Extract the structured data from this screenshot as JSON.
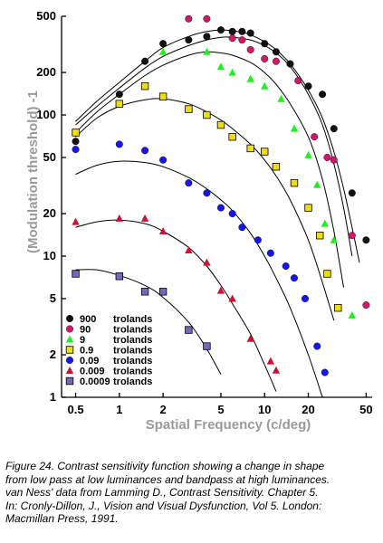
{
  "chart_data": {
    "type": "scatter",
    "xlabel": "Spatial Frequency (c/deg)",
    "ylabel": "(Modulation threshold) -1",
    "xscale": "log",
    "yscale": "log",
    "xlim": [
      0.4,
      55
    ],
    "ylim": [
      1,
      500
    ],
    "x_ticks": [
      0.5,
      1,
      2,
      5,
      10,
      20,
      50
    ],
    "y_ticks": [
      1,
      2,
      5,
      10,
      20,
      50,
      100,
      200,
      500
    ],
    "legend_position": "bottom-left",
    "series": [
      {
        "name": "900",
        "unit": "trolands",
        "marker": "circle",
        "color": "#111111",
        "x": [
          0.5,
          1.0,
          1.5,
          2.0,
          3.0,
          4.0,
          5.0,
          6.0,
          7.0,
          8.0,
          10.0,
          12.0,
          15.0,
          20.0,
          25.0,
          30.0,
          40.0,
          50.0
        ],
        "y": [
          65,
          140,
          240,
          320,
          340,
          360,
          400,
          390,
          390,
          380,
          320,
          280,
          230,
          160,
          140,
          80,
          28,
          13
        ]
      },
      {
        "name": "90",
        "unit": "trolands",
        "marker": "circle",
        "color": "#cc1a66",
        "x": [
          3.0,
          4.0,
          6.0,
          7.0,
          8.0,
          10.0,
          12.0,
          17.0,
          22.0,
          27.0,
          30.0,
          40.0,
          50.0
        ],
        "y": [
          480,
          480,
          350,
          340,
          290,
          250,
          240,
          175,
          70,
          50,
          48,
          14,
          4.5
        ]
      },
      {
        "name": "9",
        "unit": "trolands",
        "marker": "triangle",
        "color": "#22ee22",
        "x": [
          2.0,
          4.0,
          5.0,
          6.0,
          8.0,
          10.0,
          13.0,
          16.0,
          20.0,
          23.0,
          26.0,
          30.0,
          40.0
        ],
        "y": [
          280,
          280,
          220,
          200,
          180,
          160,
          130,
          80,
          52,
          32,
          17,
          13,
          3.8
        ]
      },
      {
        "name": "0.9",
        "unit": "trolands",
        "marker": "square",
        "color": "#eedd11",
        "x": [
          0.5,
          1.0,
          1.5,
          2.0,
          3.0,
          4.0,
          5.0,
          6.0,
          8.0,
          10.0,
          12.0,
          16.0,
          20.0,
          24.0,
          27.0,
          32.0
        ],
        "y": [
          75,
          120,
          160,
          135,
          110,
          100,
          85,
          70,
          58,
          55,
          43,
          33,
          22,
          14,
          7.5,
          4.3
        ]
      },
      {
        "name": "0.09",
        "unit": "trolands",
        "marker": "circle",
        "color": "#1515ee",
        "x": [
          0.5,
          1.0,
          1.5,
          2.0,
          3.0,
          4.0,
          5.0,
          6.0,
          7.0,
          9.0,
          11.0,
          14.0,
          16.0,
          19.0,
          23.0,
          26.0
        ],
        "y": [
          57,
          62,
          56,
          48,
          33,
          28,
          22,
          20,
          16,
          13,
          10.5,
          8.5,
          7.0,
          5.0,
          2.3,
          1.5
        ]
      },
      {
        "name": "0.009",
        "unit": "trolands",
        "marker": "triangle",
        "color": "#cc1133",
        "x": [
          0.5,
          1.0,
          1.5,
          2.0,
          3.0,
          4.0,
          5.0,
          6.0,
          8.0,
          11.0,
          12.0
        ],
        "y": [
          17.5,
          18.5,
          18.5,
          15,
          11,
          9.0,
          5.7,
          5.0,
          2.6,
          1.8,
          1.55
        ]
      },
      {
        "name": "0.0009",
        "unit": "trolands",
        "marker": "square",
        "color": "#7766bb",
        "x": [
          0.5,
          1.0,
          1.5,
          2.0,
          3.0,
          4.0
        ],
        "y": [
          7.5,
          7.2,
          5.6,
          5.6,
          3.0,
          2.3
        ]
      }
    ],
    "curves": [
      {
        "x": [
          0.5,
          0.7,
          1.0,
          1.5,
          2.0,
          3.0,
          4.0,
          5.0,
          6.0,
          7.0,
          8.0,
          10.0,
          12.0,
          15.0,
          20.0,
          25.0,
          30.0,
          35.0,
          40.0,
          45.0
        ],
        "y": [
          90,
          125,
          170,
          240,
          300,
          360,
          390,
          400,
          395,
          385,
          370,
          330,
          290,
          230,
          150,
          95,
          55,
          30,
          16,
          9
        ]
      },
      {
        "x": [
          0.5,
          0.7,
          1.0,
          1.5,
          2.0,
          3.0,
          4.0,
          5.0,
          6.0,
          8.0,
          10.0,
          12.0,
          15.0,
          20.0,
          25.0,
          30.0,
          35.0,
          40.0
        ],
        "y": [
          85,
          115,
          155,
          215,
          260,
          310,
          340,
          355,
          355,
          340,
          310,
          275,
          220,
          140,
          85,
          45,
          22,
          10
        ]
      },
      {
        "x": [
          0.5,
          0.7,
          1.0,
          1.5,
          2.0,
          3.0,
          4.0,
          5.0,
          6.0,
          8.0,
          10.0,
          12.0,
          15.0,
          20.0,
          25.0,
          30.0,
          35.0
        ],
        "y": [
          75,
          105,
          140,
          190,
          225,
          265,
          280,
          275,
          265,
          235,
          200,
          165,
          120,
          70,
          35,
          15,
          6
        ]
      },
      {
        "x": [
          0.5,
          0.7,
          1.0,
          1.5,
          2.0,
          3.0,
          4.0,
          5.0,
          6.0,
          8.0,
          10.0,
          12.0,
          15.0,
          20.0,
          25.0,
          30.0
        ],
        "y": [
          70,
          95,
          115,
          128,
          130,
          120,
          105,
          92,
          80,
          62,
          48,
          37,
          25,
          13,
          6.5,
          3.5
        ]
      },
      {
        "x": [
          0.5,
          0.7,
          1.0,
          1.5,
          2.0,
          3.0,
          4.0,
          5.0,
          6.0,
          8.0,
          10.0,
          12.0,
          15.0,
          20.0,
          25.0
        ],
        "y": [
          38,
          44,
          47,
          46,
          43,
          36,
          30,
          25,
          21,
          14.5,
          10,
          7.0,
          4.3,
          2.0,
          1.0
        ]
      },
      {
        "x": [
          0.5,
          0.7,
          1.0,
          1.5,
          2.0,
          3.0,
          4.0,
          5.0,
          6.0,
          8.0,
          10.0,
          12.0
        ],
        "y": [
          16,
          17.5,
          18,
          17,
          15,
          11.5,
          8.5,
          6.2,
          4.6,
          2.8,
          1.7,
          1.1
        ]
      },
      {
        "x": [
          0.5,
          0.7,
          1.0,
          1.5,
          2.0,
          3.0,
          4.0,
          5.0
        ],
        "y": [
          8,
          8,
          7.3,
          6.2,
          5.1,
          3.4,
          2.2,
          1.45
        ]
      }
    ]
  },
  "caption": {
    "lines": [
      "Figure 24. Contrast sensitivity function showing a change in shape",
      "from low pass at low luminances and bandpass at high luminances.",
      " van Ness' data from Lamming D., Contrast Sensitivity. Chapter 5.",
      " In: Cronly-Dillon, J., Vision and Visual Dysfunction, Vol 5. London:",
      "Macmillan Press, 1991."
    ]
  }
}
